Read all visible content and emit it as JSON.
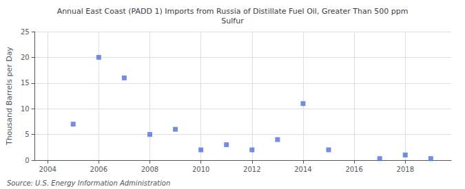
{
  "chart_data": {
    "type": "scatter",
    "title": "Annual East Coast (PADD 1) Imports from Russia of Distillate Fuel Oil, Greater Than 500 ppm\nSulfur",
    "y_label": "Thousand Barrels per Day",
    "annotations": [
      "Source: U.S. Energy Information Administration"
    ],
    "x": [
      2005,
      2006,
      2007,
      2008,
      2009,
      2010,
      2011,
      2012,
      2013,
      2014,
      2015,
      2017,
      2018,
      2019
    ],
    "values": [
      7.0,
      20.0,
      16.0,
      5.0,
      6.0,
      2.0,
      3.0,
      2.0,
      4.0,
      11.0,
      2.0,
      0.3,
      1.0,
      0.3
    ],
    "xlim": [
      2003.5,
      2019.8
    ],
    "ylim": [
      0,
      25
    ],
    "xticks": [
      2004,
      2006,
      2008,
      2010,
      2012,
      2014,
      2016,
      2018
    ],
    "yticks": [
      0,
      5,
      10,
      15,
      20,
      25
    ],
    "marker": "square",
    "grid": true
  }
}
